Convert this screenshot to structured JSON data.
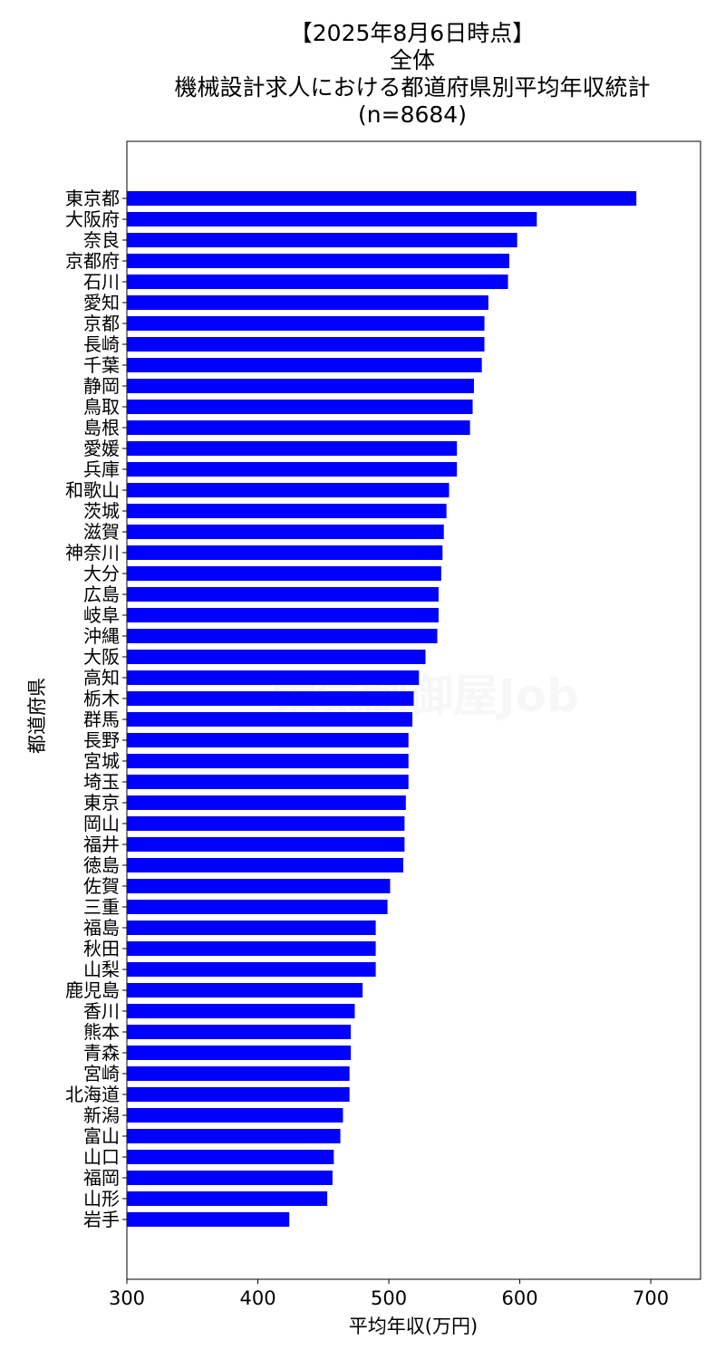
{
  "chart_data": {
    "type": "bar",
    "orientation": "horizontal",
    "title_lines": [
      "【2025年8月6日時点】",
      "全体",
      "機械設計求人における都道府県別平均年収統計",
      "(n=8684)"
    ],
    "xlabel": "平均年収(万円)",
    "ylabel": "都道府県",
    "xlim": [
      300,
      738
    ],
    "xticks": [
      300,
      400,
      500,
      600,
      700
    ],
    "bar_color": "#0000ff",
    "grid": false,
    "categories": [
      "東京都",
      "大阪府",
      "奈良",
      "京都府",
      "石川",
      "愛知",
      "京都",
      "長崎",
      "千葉",
      "静岡",
      "鳥取",
      "島根",
      "愛媛",
      "兵庫",
      "和歌山",
      "茨城",
      "滋賀",
      "神奈川",
      "大分",
      "広島",
      "岐阜",
      "沖縄",
      "大阪",
      "高知",
      "栃木",
      "群馬",
      "長野",
      "宮城",
      "埼玉",
      "東京",
      "岡山",
      "福井",
      "徳島",
      "佐賀",
      "三重",
      "福島",
      "秋田",
      "山梨",
      "鹿児島",
      "香川",
      "熊本",
      "青森",
      "宮崎",
      "北海道",
      "新潟",
      "富山",
      "山口",
      "福岡",
      "山形",
      "岩手"
    ],
    "values": [
      689,
      613,
      598,
      592,
      591,
      576,
      573,
      573,
      571,
      565,
      564,
      562,
      552,
      552,
      546,
      544,
      542,
      541,
      540,
      538,
      538,
      537,
      528,
      523,
      519,
      518,
      515,
      515,
      515,
      513,
      512,
      512,
      511,
      501,
      499,
      490,
      490,
      490,
      480,
      474,
      471,
      471,
      470,
      470,
      465,
      463,
      458,
      457,
      453,
      424
    ]
  },
  "watermark": "電気制御屋Job"
}
